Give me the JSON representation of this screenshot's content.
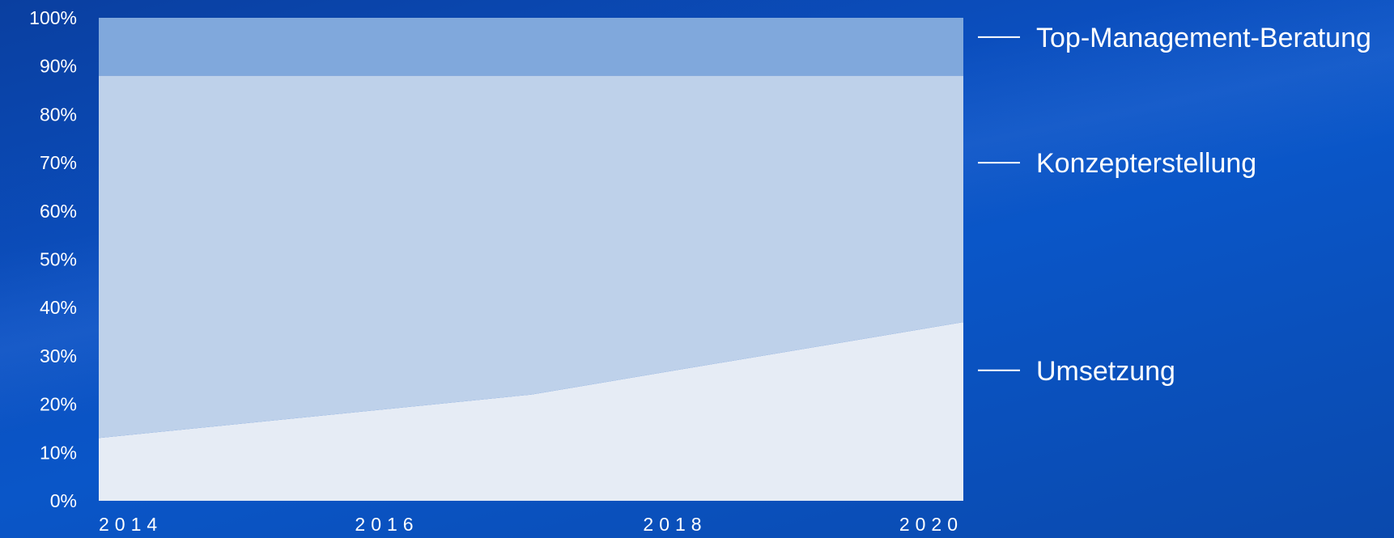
{
  "chart_data": {
    "type": "area",
    "stacked": true,
    "normalized": true,
    "x": [
      2014,
      2015,
      2016,
      2017,
      2018,
      2019,
      2020
    ],
    "x_tick_labels": [
      "2014",
      "2016",
      "2018",
      "2020"
    ],
    "y_tick_labels": [
      "0%",
      "10%",
      "20%",
      "30%",
      "40%",
      "50%",
      "60%",
      "70%",
      "80%",
      "90%",
      "100%"
    ],
    "ylim": [
      0,
      100
    ],
    "grid": false,
    "legend_placement": "right",
    "series": [
      {
        "name": "Umsetzung",
        "values": [
          13,
          16,
          19,
          22,
          27,
          32,
          37
        ],
        "color": "#e6ecf5"
      },
      {
        "name": "Konzepterstellung",
        "values": [
          75,
          72,
          69,
          66,
          61,
          56,
          51
        ],
        "color": "#bed1ea"
      },
      {
        "name": "Top-Management-Beratung",
        "values": [
          12,
          12,
          12,
          12,
          12,
          12,
          12
        ],
        "color": "#80a8dc"
      }
    ]
  }
}
